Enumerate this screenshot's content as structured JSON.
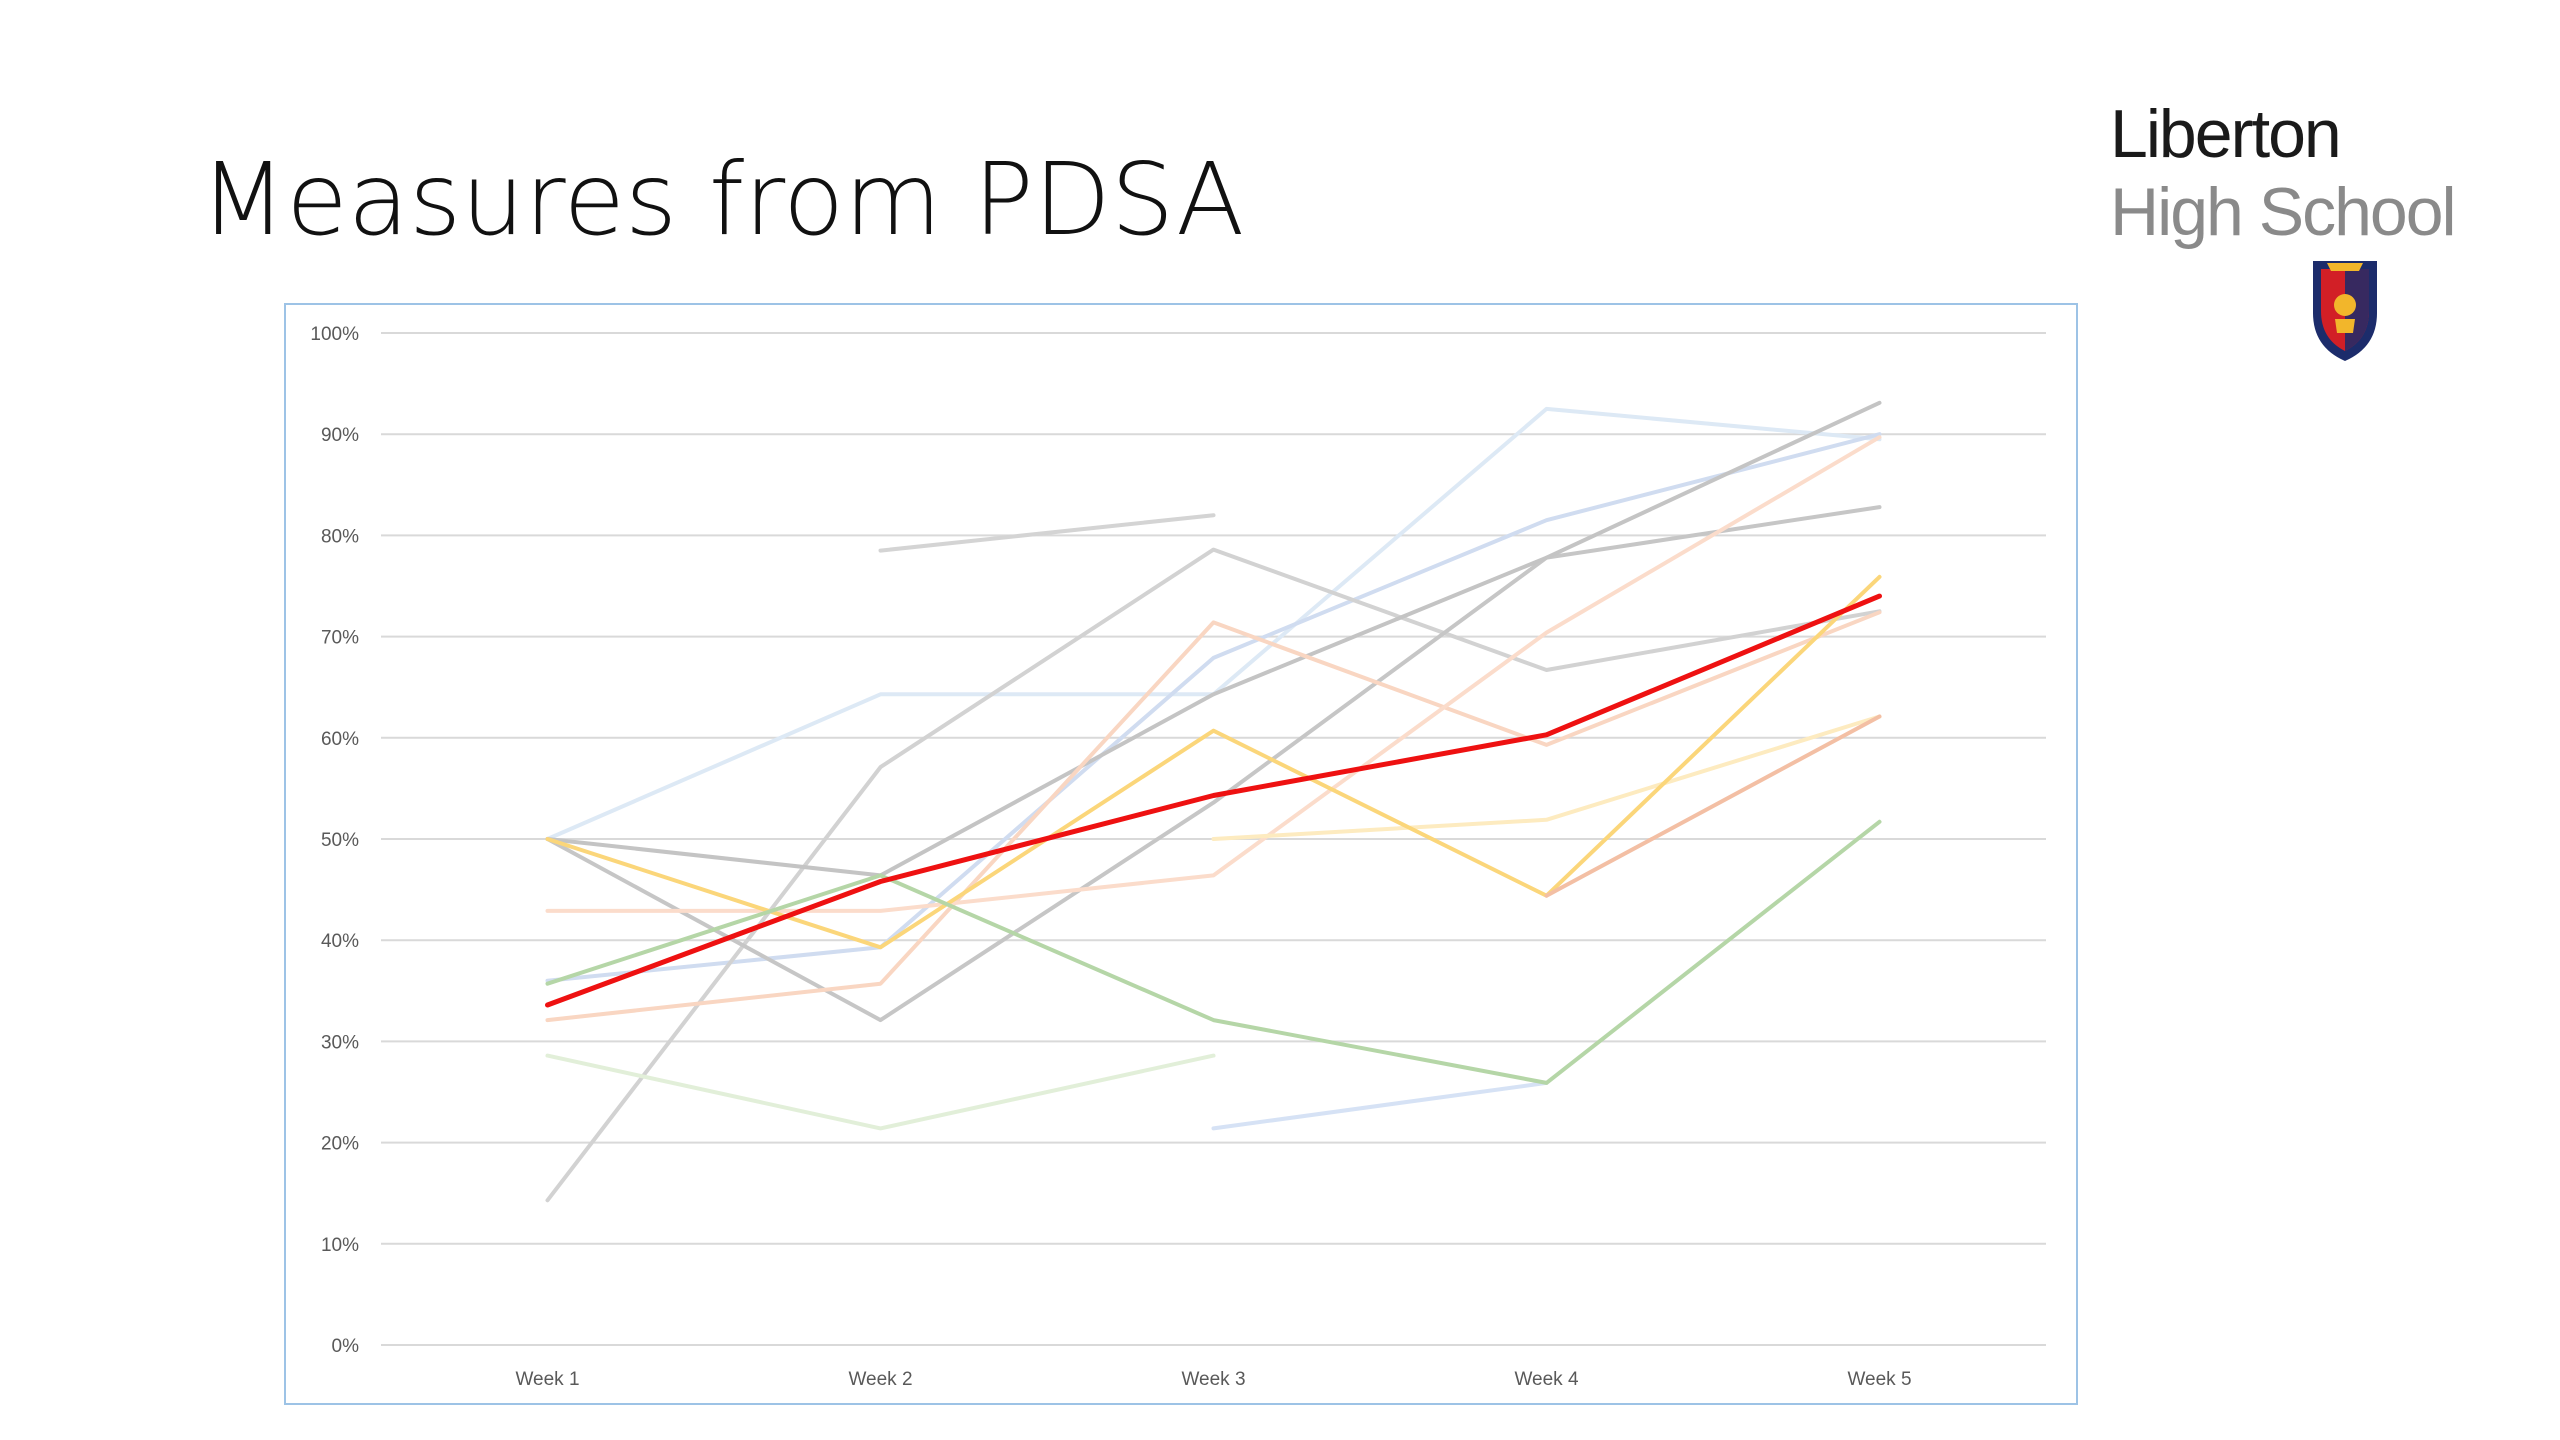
{
  "slide": {
    "title": "Measures from PDSA"
  },
  "logo": {
    "line1": "Liberton",
    "line2": "High School",
    "crest": "school-crest-shield"
  },
  "chart_data": {
    "type": "line",
    "title": "",
    "xlabel": "",
    "ylabel": "",
    "categories": [
      "Week 1",
      "Week 2",
      "Week 3",
      "Week 4",
      "Week 5"
    ],
    "ylim": [
      0,
      100
    ],
    "yticks": [
      "0%",
      "10%",
      "20%",
      "30%",
      "40%",
      "50%",
      "60%",
      "70%",
      "80%",
      "90%",
      "100%"
    ],
    "grid": true,
    "legend": "none",
    "series": [
      {
        "values": [
          null,
          78.5,
          82,
          null,
          null
        ],
        "color": "#d4d4d4",
        "width": 4
      },
      {
        "values": [
          50,
          64.3,
          64.3,
          92.5,
          89.5
        ],
        "color": "#dde9f5",
        "width": 4
      },
      {
        "values": [
          36,
          39.3,
          67.9,
          81.5,
          90
        ],
        "color": "#d0dcf0",
        "width": 4
      },
      {
        "values": [
          14.3,
          57.1,
          78.6,
          66.7,
          72.5
        ],
        "color": "#d2d2d2",
        "width": 4
      },
      {
        "values": [
          50,
          32.1,
          53.6,
          77.8,
          82.8
        ],
        "color": "#c6c6c6",
        "width": 4
      },
      {
        "values": [
          50,
          46.4,
          64.3,
          77.8,
          93.1
        ],
        "color": "#c4c4c4",
        "width": 4
      },
      {
        "values": [
          32.1,
          35.7,
          71.4,
          59.3,
          72.4
        ],
        "color": "#f9d6c2",
        "width": 4
      },
      {
        "values": [
          42.9,
          42.9,
          46.4,
          70.4,
          89.7
        ],
        "color": "#fbdccb",
        "width": 4
      },
      {
        "values": [
          null,
          null,
          50,
          51.9,
          62.1
        ],
        "color": "#fdebc0",
        "width": 4
      },
      {
        "values": [
          50,
          39.3,
          60.7,
          44.4,
          75.9
        ],
        "color": "#fbd67a",
        "width": 4
      },
      {
        "values": [
          null,
          null,
          null,
          44.4,
          62.1
        ],
        "color": "#f3bfa4",
        "width": 4
      },
      {
        "values": [
          28.6,
          21.4,
          28.6,
          null,
          null
        ],
        "color": "#e2efd9",
        "width": 4
      },
      {
        "values": [
          null,
          null,
          21.4,
          25.9,
          null
        ],
        "color": "#d6e2f5",
        "width": 4
      },
      {
        "values": [
          35.7,
          46.4,
          32.1,
          25.9,
          51.7
        ],
        "color": "#b5d6a7",
        "width": 4
      },
      {
        "values": [
          33.6,
          45.8,
          54.3,
          60.3,
          74
        ],
        "color": "#ee1111",
        "width": 5
      }
    ]
  }
}
